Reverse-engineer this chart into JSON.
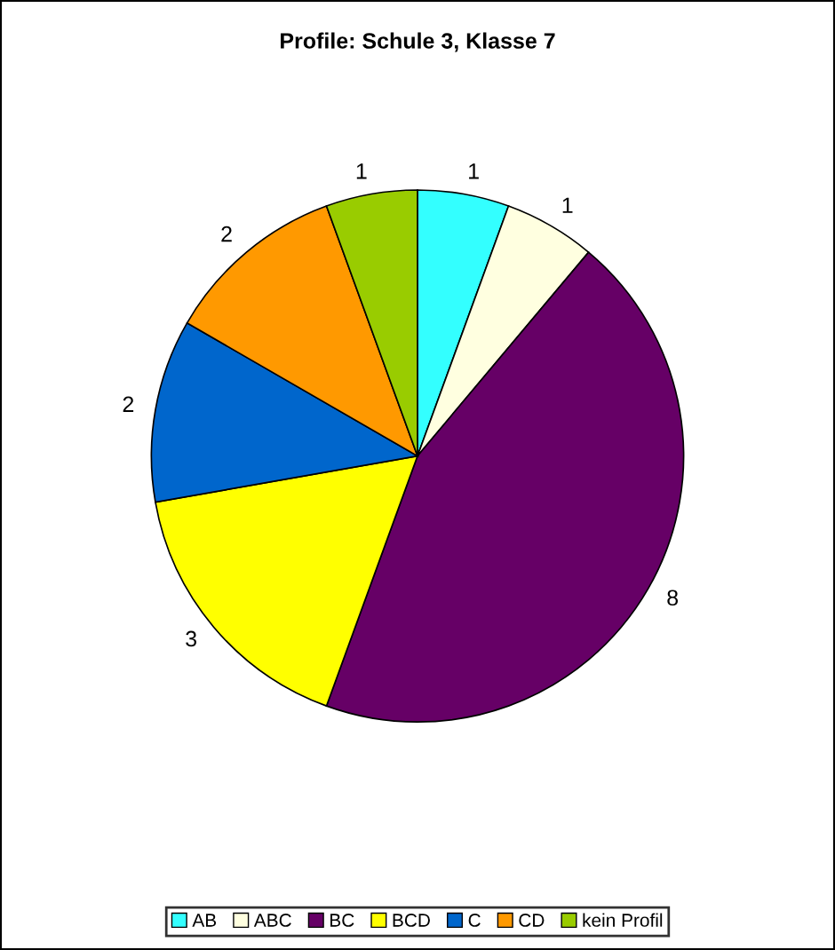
{
  "chart_data": {
    "type": "pie",
    "title": "Profile: Schule 3, Klasse 7",
    "categories": [
      "AB",
      "ABC",
      "BC",
      "BCD",
      "C",
      "CD",
      "kein Profil"
    ],
    "values": [
      1,
      1,
      8,
      3,
      2,
      2,
      1
    ],
    "colors": [
      "#33ffff",
      "#ffffe0",
      "#660066",
      "#ffff00",
      "#0066cc",
      "#ff9900",
      "#99cc00"
    ],
    "data_labels": true,
    "legend": "bottom"
  }
}
